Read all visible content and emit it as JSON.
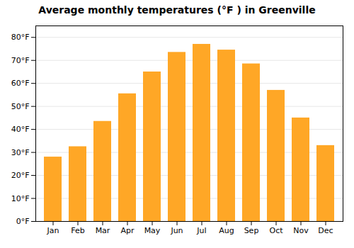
{
  "chart_data": {
    "type": "bar",
    "title": "Average monthly temperatures (°F ) in Greenville",
    "categories": [
      "Jan",
      "Feb",
      "Mar",
      "Apr",
      "May",
      "Jun",
      "Jul",
      "Aug",
      "Sep",
      "Oct",
      "Nov",
      "Dec"
    ],
    "values": [
      28,
      32.5,
      43.5,
      55.5,
      65,
      73.5,
      77,
      74.5,
      68.5,
      57,
      45,
      33
    ],
    "color": "#FFA726",
    "ylim": [
      0,
      85
    ],
    "yticks": [
      {
        "value": 0,
        "label": "0°F"
      },
      {
        "value": 10,
        "label": "10°F"
      },
      {
        "value": 20,
        "label": "20°F"
      },
      {
        "value": 30,
        "label": "30°F"
      },
      {
        "value": 40,
        "label": "40°F"
      },
      {
        "value": 50,
        "label": "50°F"
      },
      {
        "value": 60,
        "label": "60°F"
      },
      {
        "value": 70,
        "label": "70°F"
      },
      {
        "value": 80,
        "label": "80°F"
      }
    ],
    "grid": true
  }
}
